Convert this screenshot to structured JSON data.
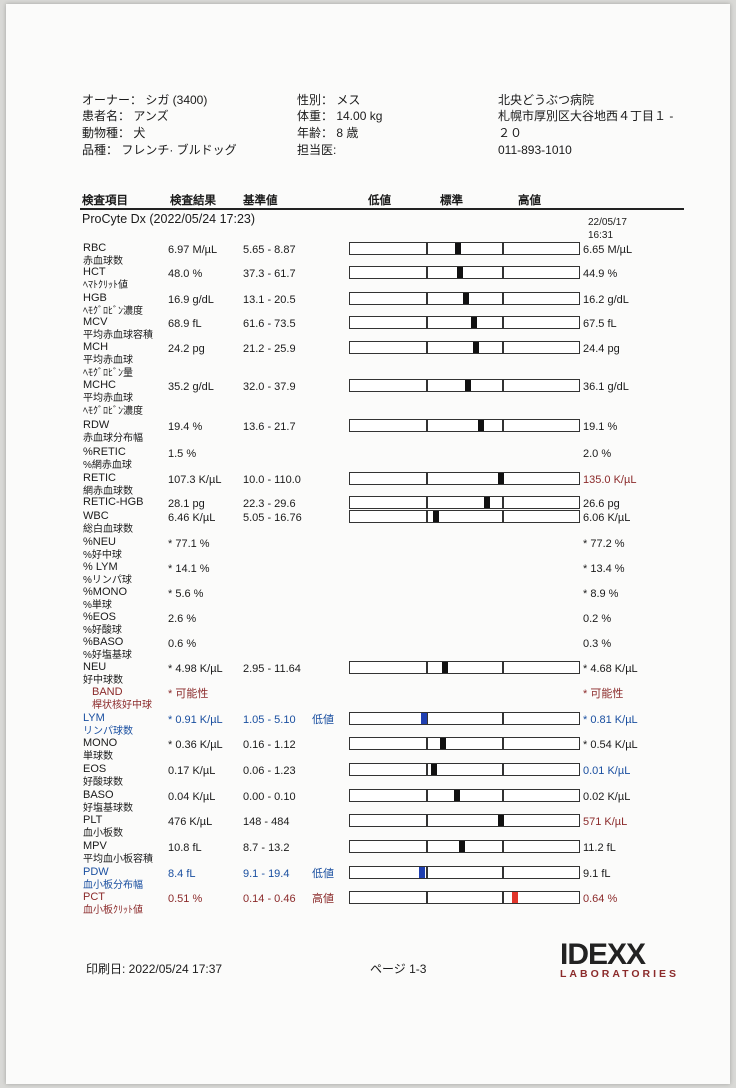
{
  "header": {
    "owner": "オーナー： シガ (3400)",
    "patient": "患者名： アンズ",
    "species": "動物種： 犬",
    "breed": "品種： フレンチ· ブルドッグ",
    "sex": "性別： メス",
    "weight": "体重： 14.00 kg",
    "age": "年齢： 8 歳",
    "doctor": "担当医:",
    "clinic_name": "北央どうぶつ病院",
    "clinic_address_1": "札幌市厚別区大谷地西４丁目１ -",
    "clinic_address_2": "２０",
    "clinic_phone": "011-893-1010"
  },
  "columns": {
    "item": "検査項目",
    "result": "検査結果",
    "range": "基準値",
    "low": "低値",
    "normal": "標準",
    "high": "高値"
  },
  "section": {
    "title": "ProCyte Dx (2022/05/24 17:23)",
    "prev_date": "22/05/17",
    "prev_time": "16:31"
  },
  "colors": {
    "red": "#8b2a2a",
    "blue": "#1a4fa0",
    "marker": "#111111",
    "marker_low": "#1f3fb0",
    "marker_high": "#e0352b"
  },
  "rows": [
    {
      "code": "RBC",
      "jp": [
        "赤血球数"
      ],
      "result": "6.97 M/µL",
      "range": "5.65 - 8.87",
      "prev": "6.65 M/µL",
      "bar": {
        "low": 5.65,
        "high": 8.87,
        "value": 6.97
      }
    },
    {
      "code": "HCT",
      "jp": [
        "ﾍﾏﾄｸﾘｯﾄ値"
      ],
      "result": "48.0 %",
      "range": "37.3 - 61.7",
      "prev": "44.9 %",
      "bar": {
        "low": 37.3,
        "high": 61.7,
        "value": 48.0
      }
    },
    {
      "code": "HGB",
      "jp": [
        "ﾍﾓｸﾞﾛﾋﾞﾝ濃度"
      ],
      "result": "16.9 g/dL",
      "range": "13.1 - 20.5",
      "prev": "16.2 g/dL",
      "bar": {
        "low": 13.1,
        "high": 20.5,
        "value": 16.9
      }
    },
    {
      "code": "MCV",
      "jp": [
        "平均赤血球容積"
      ],
      "result": "68.9 fL",
      "range": "61.6 - 73.5",
      "prev": "67.5 fL",
      "bar": {
        "low": 61.6,
        "high": 73.5,
        "value": 68.9
      }
    },
    {
      "code": "MCH",
      "jp": [
        "平均赤血球",
        "ﾍﾓｸﾞﾛﾋﾞﾝ量"
      ],
      "result": "24.2 pg",
      "range": "21.2 - 25.9",
      "prev": "24.4 pg",
      "bar": {
        "low": 21.2,
        "high": 25.9,
        "value": 24.2
      }
    },
    {
      "code": "MCHC",
      "jp": [
        "平均赤血球",
        "ﾍﾓｸﾞﾛﾋﾞﾝ濃度"
      ],
      "result": "35.2 g/dL",
      "range": "32.0 - 37.9",
      "prev": "36.1 g/dL",
      "bar": {
        "low": 32.0,
        "high": 37.9,
        "value": 35.2
      }
    },
    {
      "code": "RDW",
      "jp": [
        "赤血球分布幅"
      ],
      "result": "19.4 %",
      "range": "13.6 - 21.7",
      "prev": "19.1 %",
      "bar": {
        "low": 13.6,
        "high": 21.7,
        "value": 19.4
      }
    },
    {
      "code": "%RETIC",
      "jp": [
        "%網赤血球"
      ],
      "result": "1.5 %",
      "range": "",
      "prev": "2.0 %"
    },
    {
      "code": "RETIC",
      "jp": [
        "網赤血球数"
      ],
      "result": "107.3 K/µL",
      "range": "10.0 - 110.0",
      "prev": "135.0 K/µL",
      "prev_color": "red",
      "bar": {
        "low": 10.0,
        "high": 110.0,
        "value": 107.3
      }
    },
    {
      "code": "RETIC-HGB",
      "jp": [],
      "result": "28.1 pg",
      "range": "22.3 - 29.6",
      "prev": "26.6 pg",
      "bar": {
        "low": 22.3,
        "high": 29.6,
        "value": 28.1
      }
    },
    {
      "code": "WBC",
      "jp": [
        "総白血球数"
      ],
      "result": "6.46 K/µL",
      "range": "5.05 - 16.76",
      "prev": "6.06 K/µL",
      "bar": {
        "low": 5.05,
        "high": 16.76,
        "value": 6.46
      }
    },
    {
      "code": "%NEU",
      "jp": [
        "%好中球"
      ],
      "result": "* 77.1 %",
      "range": "",
      "prev": "* 77.2 %"
    },
    {
      "code": "% LYM",
      "jp": [
        "%リンパ球"
      ],
      "result": "* 14.1 %",
      "range": "",
      "prev": "* 13.4 %"
    },
    {
      "code": "%MONO",
      "jp": [
        "%単球"
      ],
      "result": "* 5.6 %",
      "range": "",
      "prev": "* 8.9 %"
    },
    {
      "code": "%EOS",
      "jp": [
        "%好酸球"
      ],
      "result": "2.6 %",
      "range": "",
      "prev": "0.2 %"
    },
    {
      "code": "%BASO",
      "jp": [
        "%好塩基球"
      ],
      "result": "0.6 %",
      "range": "",
      "prev": "0.3 %"
    },
    {
      "code": "NEU",
      "jp": [
        "好中球数"
      ],
      "result": "* 4.98 K/µL",
      "range": "2.95 - 11.64",
      "prev": "* 4.68 K/µL",
      "bar": {
        "low": 2.95,
        "high": 11.64,
        "value": 4.98
      }
    },
    {
      "code": "BAND",
      "jp": [
        "桿状核好中球"
      ],
      "result": "* 可能性",
      "range": "",
      "prev": "* 可能性",
      "color": "red",
      "prev_color": "red",
      "indent": true
    },
    {
      "code": "LYM",
      "jp": [
        "リンパ球数"
      ],
      "result": "* 0.91 K/µL",
      "range": "1.05 - 5.10",
      "flag": "低値",
      "prev": "* 0.81 K/µL",
      "color": "blue",
      "prev_color": "blue",
      "bar": {
        "low": 1.05,
        "high": 5.1,
        "value": 0.91,
        "state": "low"
      }
    },
    {
      "code": "MONO",
      "jp": [
        "単球数"
      ],
      "result": "* 0.36 K/µL",
      "range": "0.16 - 1.12",
      "prev": "* 0.54 K/µL",
      "bar": {
        "low": 0.16,
        "high": 1.12,
        "value": 0.36
      }
    },
    {
      "code": "EOS",
      "jp": [
        "好酸球数"
      ],
      "result": "0.17 K/µL",
      "range": "0.06 - 1.23",
      "prev": "0.01 K/µL",
      "prev_color": "blue",
      "bar": {
        "low": 0.06,
        "high": 1.23,
        "value": 0.17
      }
    },
    {
      "code": "BASO",
      "jp": [
        "好塩基球数"
      ],
      "result": "0.04 K/µL",
      "range": "0.00 - 0.10",
      "prev": "0.02 K/µL",
      "bar": {
        "low": 0.0,
        "high": 0.1,
        "value": 0.04
      }
    },
    {
      "code": "PLT",
      "jp": [
        "血小板数"
      ],
      "result": "476 K/µL",
      "range": "148 - 484",
      "prev": "571 K/µL",
      "prev_color": "red",
      "bar": {
        "low": 148,
        "high": 484,
        "value": 476
      }
    },
    {
      "code": "MPV",
      "jp": [
        "平均血小板容積"
      ],
      "result": "10.8 fL",
      "range": "8.7 - 13.2",
      "prev": "11.2 fL",
      "bar": {
        "low": 8.7,
        "high": 13.2,
        "value": 10.8
      }
    },
    {
      "code": "PDW",
      "jp": [
        "血小板分布幅"
      ],
      "result": "8.4 fL",
      "range": "9.1 - 19.4",
      "flag": "低値",
      "prev": "9.1 fL",
      "color": "blue",
      "bar": {
        "low": 9.1,
        "high": 19.4,
        "value": 8.4,
        "state": "low"
      }
    },
    {
      "code": "PCT",
      "jp": [
        "血小板ｸﾘｯﾄ値"
      ],
      "result": "0.51 %",
      "range": "0.14 - 0.46",
      "flag": "高値",
      "prev": "0.64 %",
      "color": "red",
      "prev_color": "red",
      "bar": {
        "low": 0.14,
        "high": 0.46,
        "value": 0.51,
        "state": "high"
      }
    }
  ],
  "footer": {
    "print_date": "印刷日: 2022/05/24 17:37",
    "page": "ページ 1-3",
    "logo_main": "IDEXX",
    "logo_sub": "LABORATORIES"
  }
}
